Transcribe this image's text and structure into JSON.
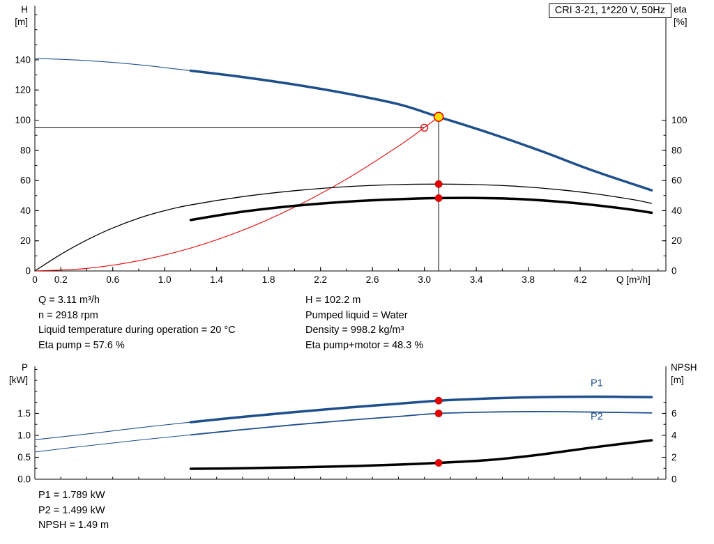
{
  "title_box": {
    "text": "CRI 3-21, 1*220 V, 50Hz"
  },
  "operating_point_info": {
    "left": [
      "Q = 3.11 m³/h",
      "n = 2918 rpm",
      "Liquid temperature during operation = 20 °C",
      "Eta pump = 57.6 %"
    ],
    "right": [
      "H = 102.2 m",
      "Pumped liquid = Water",
      "Density = 998.2 kg/m³",
      "Eta pump+motor = 48.3 %"
    ]
  },
  "power_info": [
    "P1 = 1.789 kW",
    "P2 = 1.499 kW",
    "NPSH = 1.49 m"
  ],
  "colors": {
    "curve_blue": "#1e4f8c",
    "curve_black": "#000000",
    "curve_red": "#e60000",
    "dot_red": "#e60000",
    "dot_yellow": "#ffdd00"
  },
  "chart_data": [
    {
      "id": "qh-eta",
      "type": "line",
      "title": "CRI 3-21, 1*220 V, 50Hz",
      "x_axis": {
        "label": "Q [m³/h]",
        "min": 0,
        "max": 4.86,
        "minor_step": 0.2,
        "tick_values": [
          0,
          0.2,
          0.6,
          1.0,
          1.4,
          1.8,
          2.2,
          2.6,
          3.0,
          3.4,
          3.8,
          4.2
        ],
        "tick_labels": [
          "0",
          "0.2",
          "0.6",
          "1.0",
          "1.4",
          "1.8",
          "2.2",
          "2.6",
          "3.0",
          "3.4",
          "3.8",
          "4.2"
        ]
      },
      "y_left": {
        "label_lines": [
          "H",
          "[m]"
        ],
        "min": 0,
        "max": 176,
        "minor_step": 10,
        "minor_max": 170,
        "tick_values": [
          0,
          20,
          40,
          60,
          80,
          100,
          120,
          140
        ],
        "tick_labels": [
          "0",
          "20",
          "40",
          "60",
          "80",
          "100",
          "120",
          "140"
        ]
      },
      "y_right": {
        "label_lines": [
          "eta",
          "[%]"
        ],
        "min": 0,
        "max": 176,
        "minor_step": 10,
        "minor_max": 100,
        "tick_values": [
          0,
          20,
          40,
          60,
          80,
          100
        ],
        "tick_labels": [
          "0",
          "20",
          "40",
          "60",
          "80",
          "100"
        ]
      },
      "series": [
        {
          "name": "system-curve",
          "axis": "left",
          "color": "#e60000",
          "width": 1.1,
          "points": [
            [
              0,
              0
            ],
            [
              0.4,
              1.7
            ],
            [
              0.8,
              6.8
            ],
            [
              1.2,
              15.2
            ],
            [
              1.6,
              27.0
            ],
            [
              2.0,
              42.3
            ],
            [
              2.4,
              60.9
            ],
            [
              2.8,
              82.8
            ],
            [
              3.0,
              95.1
            ],
            [
              3.11,
              102.2
            ]
          ]
        },
        {
          "name": "eta-pump",
          "axis": "right",
          "color": "#000000",
          "width": 1.3,
          "points": [
            [
              0,
              0
            ],
            [
              0.2,
              11
            ],
            [
              0.4,
              20.5
            ],
            [
              0.6,
              28.5
            ],
            [
              0.8,
              35
            ],
            [
              1.0,
              40
            ],
            [
              1.2,
              43.8
            ],
            [
              1.6,
              49.3
            ],
            [
              2.0,
              53.2
            ],
            [
              2.4,
              55.9
            ],
            [
              2.8,
              57.3
            ],
            [
              3.11,
              57.6
            ],
            [
              3.4,
              57.3
            ],
            [
              3.7,
              56.2
            ],
            [
              4.0,
              54.2
            ],
            [
              4.3,
              51.3
            ],
            [
              4.6,
              47.4
            ],
            [
              4.75,
              44.8
            ]
          ]
        },
        {
          "name": "eta-pump-motor",
          "axis": "right",
          "color": "#000000",
          "width": 3.5,
          "points": [
            [
              1.2,
              33.8
            ],
            [
              1.6,
              39.3
            ],
            [
              2.0,
              43.2
            ],
            [
              2.4,
              45.9
            ],
            [
              2.8,
              47.6
            ],
            [
              3.11,
              48.3
            ],
            [
              3.4,
              48.4
            ],
            [
              3.7,
              47.8
            ],
            [
              4.0,
              46.2
            ],
            [
              4.3,
              43.8
            ],
            [
              4.6,
              40.6
            ],
            [
              4.75,
              38.6
            ]
          ]
        },
        {
          "name": "head",
          "axis": "left",
          "color": "#1e4f8c",
          "width": 3.5,
          "width_thin": 1.1,
          "thick_from": 1.2,
          "points": [
            [
              0,
              141
            ],
            [
              0.4,
              139.5
            ],
            [
              0.8,
              136.8
            ],
            [
              1.2,
              132.8
            ],
            [
              1.6,
              128.6
            ],
            [
              2.0,
              123.6
            ],
            [
              2.4,
              117.7
            ],
            [
              2.8,
              110.6
            ],
            [
              3.11,
              102.2
            ],
            [
              3.5,
              91.5
            ],
            [
              3.9,
              79.5
            ],
            [
              4.3,
              66.5
            ],
            [
              4.75,
              53.5
            ]
          ]
        }
      ],
      "markers": [
        {
          "name": "duty-head-line",
          "type": "hline",
          "axis": "left",
          "y": 95,
          "x1": 0,
          "x2": 3.0,
          "color": "#000000",
          "width": 1
        },
        {
          "name": "duty-flow-line",
          "type": "vline",
          "axis": "left",
          "x": 3.11,
          "y1": 0,
          "y2": 102.2,
          "color": "#000000",
          "width": 1
        },
        {
          "name": "requested-duty-point",
          "type": "circle",
          "axis": "left",
          "x": 3.0,
          "y": 95,
          "r": 5,
          "fill": "none",
          "stroke": "#e60000",
          "width": 1.3
        },
        {
          "name": "eta-pump-point",
          "type": "circle",
          "axis": "right",
          "x": 3.11,
          "y": 57.6,
          "r": 5,
          "fill": "#e60000",
          "stroke": "#c00000",
          "width": 0.8
        },
        {
          "name": "eta-pump-motor-point",
          "type": "circle",
          "axis": "right",
          "x": 3.11,
          "y": 48.3,
          "r": 5,
          "fill": "#e60000",
          "stroke": "#c00000",
          "width": 0.8
        },
        {
          "name": "operating-point",
          "type": "circle",
          "axis": "left",
          "x": 3.11,
          "y": 102.2,
          "r": 6.5,
          "fill": "#ffdd00",
          "stroke": "#e60000",
          "width": 1.6
        }
      ]
    },
    {
      "id": "power-npsh",
      "type": "line",
      "x_axis": {
        "label": "",
        "min": 0,
        "max": 4.86,
        "minor_step": 0.2,
        "tick_values": [],
        "tick_labels": []
      },
      "y_left": {
        "label_lines": [
          "P",
          "[kW]"
        ],
        "min": 0,
        "max": 2.57,
        "minor_step": 0.25,
        "minor_max": 2.5,
        "tick_values": [
          0,
          0.5,
          1.0,
          1.5
        ],
        "tick_labels": [
          "0.0",
          "0.5",
          "1.0",
          "1.5"
        ]
      },
      "y_right": {
        "label_lines": [
          "NPSH",
          "[m]"
        ],
        "min": 0,
        "max": 10.28,
        "minor_step": 1,
        "minor_max": 7,
        "tick_values": [
          0,
          2,
          4,
          6
        ],
        "tick_labels": [
          "0",
          "2",
          "4",
          "6"
        ]
      },
      "series": [
        {
          "name": "p1",
          "axis": "left",
          "color": "#1e4f8c",
          "width": 3.5,
          "width_thin": 1.1,
          "thick_from": 1.2,
          "points": [
            [
              0,
              0.9
            ],
            [
              0.4,
              1.03
            ],
            [
              0.8,
              1.17
            ],
            [
              1.2,
              1.3
            ],
            [
              1.6,
              1.42
            ],
            [
              2.0,
              1.53
            ],
            [
              2.4,
              1.63
            ],
            [
              2.8,
              1.72
            ],
            [
              3.11,
              1.789
            ],
            [
              3.5,
              1.84
            ],
            [
              3.9,
              1.87
            ],
            [
              4.3,
              1.88
            ],
            [
              4.75,
              1.87
            ]
          ]
        },
        {
          "name": "p2",
          "axis": "left",
          "color": "#1e4f8c",
          "width": 1.8,
          "width_thin": 1.0,
          "thick_from": 1.2,
          "points": [
            [
              0,
              0.62
            ],
            [
              0.4,
              0.76
            ],
            [
              0.8,
              0.89
            ],
            [
              1.2,
              1.01
            ],
            [
              1.6,
              1.13
            ],
            [
              2.0,
              1.24
            ],
            [
              2.4,
              1.34
            ],
            [
              2.8,
              1.43
            ],
            [
              3.11,
              1.499
            ],
            [
              3.5,
              1.53
            ],
            [
              3.9,
              1.54
            ],
            [
              4.3,
              1.53
            ],
            [
              4.75,
              1.51
            ]
          ]
        },
        {
          "name": "npsh",
          "axis": "right",
          "color": "#000000",
          "width": 3.5,
          "points": [
            [
              1.2,
              0.95
            ],
            [
              1.6,
              1.0
            ],
            [
              2.0,
              1.08
            ],
            [
              2.4,
              1.18
            ],
            [
              2.8,
              1.33
            ],
            [
              3.11,
              1.49
            ],
            [
              3.5,
              1.75
            ],
            [
              3.9,
              2.25
            ],
            [
              4.3,
              2.9
            ],
            [
              4.75,
              3.55
            ]
          ]
        }
      ],
      "markers": [
        {
          "name": "p1-point",
          "type": "circle",
          "axis": "left",
          "x": 3.11,
          "y": 1.789,
          "r": 5,
          "fill": "#e60000",
          "stroke": "#c00000",
          "width": 0.8
        },
        {
          "name": "p2-point",
          "type": "circle",
          "axis": "left",
          "x": 3.11,
          "y": 1.499,
          "r": 5,
          "fill": "#e60000",
          "stroke": "#c00000",
          "width": 0.8
        },
        {
          "name": "npsh-point",
          "type": "circle",
          "axis": "right",
          "x": 3.11,
          "y": 1.49,
          "r": 5,
          "fill": "#e60000",
          "stroke": "#c00000",
          "width": 0.8
        }
      ],
      "series_labels": [
        {
          "text": "P1",
          "x": 4.28,
          "y": 2.12,
          "axis": "left",
          "color": "#1e4f8c"
        },
        {
          "text": "P2",
          "x": 4.28,
          "y": 1.36,
          "axis": "left",
          "color": "#1e4f8c"
        }
      ]
    }
  ]
}
